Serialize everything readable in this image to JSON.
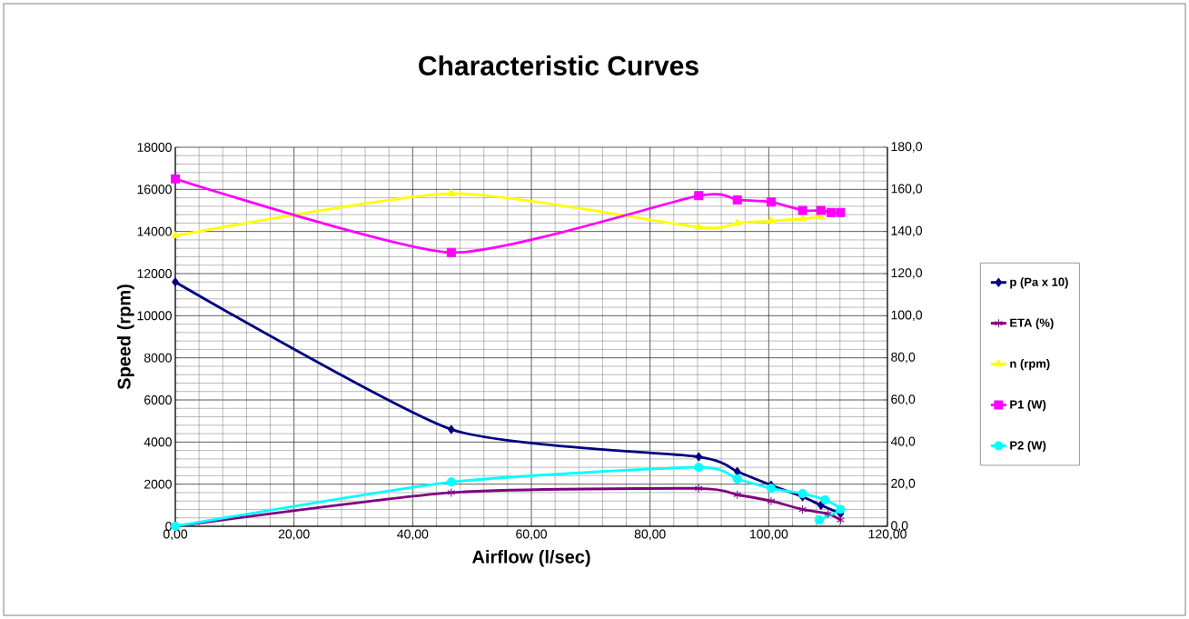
{
  "chart_data": {
    "type": "line",
    "title": "Characteristic Curves",
    "xlabel": "Airflow (l/sec)",
    "ylabel": "Speed (rpm)",
    "xlim": [
      0,
      120
    ],
    "xticks": [
      {
        "value": 0,
        "label": "0,00"
      },
      {
        "value": 20,
        "label": "20,00"
      },
      {
        "value": 40,
        "label": "40,00"
      },
      {
        "value": 60,
        "label": "60,00"
      },
      {
        "value": 80,
        "label": "80,00"
      },
      {
        "value": 100,
        "label": "100,00"
      },
      {
        "value": 120,
        "label": "120,00"
      }
    ],
    "ylim": [
      0,
      18000
    ],
    "yticks": [
      0,
      2000,
      4000,
      6000,
      8000,
      10000,
      12000,
      14000,
      16000,
      18000
    ],
    "y2lim": [
      0,
      180
    ],
    "y2ticks": [
      {
        "value": 0,
        "label": "0,0"
      },
      {
        "value": 20,
        "label": "20,0"
      },
      {
        "value": 40,
        "label": "40,0"
      },
      {
        "value": 60,
        "label": "60,0"
      },
      {
        "value": 80,
        "label": "80,0"
      },
      {
        "value": 100,
        "label": "100,0"
      },
      {
        "value": 120,
        "label": "120,0"
      },
      {
        "value": 140,
        "label": "140,0"
      },
      {
        "value": 160,
        "label": "160,0"
      },
      {
        "value": 180,
        "label": "180,0"
      }
    ],
    "grid": true,
    "legend": "right",
    "series": [
      {
        "name": "p (Pa x 10)",
        "color": "#000080",
        "marker": "diamond",
        "x": [
          0,
          46.5,
          88.2,
          94.7,
          100.4,
          105.7,
          108.8,
          112.1
        ],
        "values": [
          11600,
          4600,
          3300,
          2600,
          1950,
          1400,
          1000,
          600
        ]
      },
      {
        "name": "ETA (%)",
        "color": "#800080",
        "marker": "cross",
        "axis": "y2",
        "x": [
          0,
          46.5,
          88.2,
          94.7,
          100.4,
          105.7,
          110,
          112.1
        ],
        "values": [
          0,
          16,
          18,
          15,
          12,
          8,
          6,
          3
        ]
      },
      {
        "name": "n (rpm)",
        "color": "#ffff00",
        "marker": "triangle",
        "x": [
          0,
          46.5,
          88.2,
          94.7,
          100.4,
          105.7,
          108.8
        ],
        "values": [
          13800,
          15800,
          14200,
          14400,
          14500,
          14600,
          14700
        ]
      },
      {
        "name": "P1 (W)",
        "color": "#ff00ff",
        "marker": "square",
        "axis": "y2",
        "x": [
          0,
          46.5,
          88.2,
          94.7,
          100.4,
          105.7,
          108.8,
          110.5,
          112.1
        ],
        "values": [
          165,
          130,
          157,
          155,
          154,
          150,
          150,
          149,
          149
        ]
      },
      {
        "name": "P2 (W)",
        "color": "#00ffff",
        "marker": "circle",
        "axis": "y2",
        "x": [
          0,
          46.5,
          88.2,
          94.7,
          100.4,
          105.7,
          109.5,
          112.1,
          108.5
        ],
        "values": [
          0,
          21,
          28,
          22.5,
          18,
          15.5,
          12.5,
          8,
          3
        ]
      }
    ]
  }
}
